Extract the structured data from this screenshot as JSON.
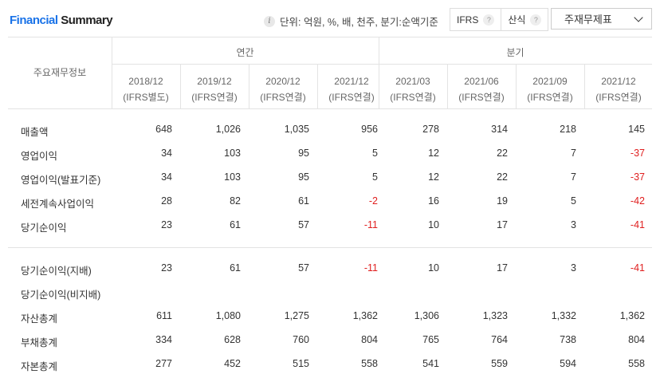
{
  "header": {
    "title_part1": "Financial",
    "title_part2": " Summary",
    "info_glyph": "i",
    "unit_text": "단위: 억원, %, 배, 천주, 분기:순액기준",
    "toggle_ifrs": "IFRS",
    "toggle_calc": "산식",
    "help_glyph": "?",
    "dropdown_value": "주재무제표"
  },
  "table": {
    "label_header": "주요재무정보",
    "group_annual": "연간",
    "group_quarter": "분기",
    "columns": [
      {
        "period": "2018/12",
        "basis": "(IFRS별도)"
      },
      {
        "period": "2019/12",
        "basis": "(IFRS연결)"
      },
      {
        "period": "2020/12",
        "basis": "(IFRS연결)"
      },
      {
        "period": "2021/12",
        "basis": "(IFRS연결)"
      },
      {
        "period": "2021/03",
        "basis": "(IFRS연결)"
      },
      {
        "period": "2021/06",
        "basis": "(IFRS연결)"
      },
      {
        "period": "2021/09",
        "basis": "(IFRS연결)"
      },
      {
        "period": "2021/12",
        "basis": "(IFRS연결)"
      }
    ],
    "rows": [
      {
        "label": "매출액",
        "values": [
          "648",
          "1,026",
          "1,035",
          "956",
          "278",
          "314",
          "218",
          "145"
        ]
      },
      {
        "label": "영업이익",
        "values": [
          "34",
          "103",
          "95",
          "5",
          "12",
          "22",
          "7",
          "-37"
        ]
      },
      {
        "label": "영업이익(발표기준)",
        "values": [
          "34",
          "103",
          "95",
          "5",
          "12",
          "22",
          "7",
          "-37"
        ]
      },
      {
        "label": "세전계속사업이익",
        "values": [
          "28",
          "82",
          "61",
          "-2",
          "16",
          "19",
          "5",
          "-42"
        ]
      },
      {
        "label": "당기순이익",
        "values": [
          "23",
          "61",
          "57",
          "-11",
          "10",
          "17",
          "3",
          "-41"
        ]
      },
      {
        "label": "당기순이익(지배)",
        "values": [
          "23",
          "61",
          "57",
          "-11",
          "10",
          "17",
          "3",
          "-41"
        ]
      },
      {
        "label": "당기순이익(비지배)",
        "values": [
          "",
          "",
          "",
          "",
          "",
          "",
          "",
          ""
        ]
      },
      {
        "label": "자산총계",
        "values": [
          "611",
          "1,080",
          "1,275",
          "1,362",
          "1,306",
          "1,323",
          "1,332",
          "1,362"
        ]
      },
      {
        "label": "부채총계",
        "values": [
          "334",
          "628",
          "760",
          "804",
          "765",
          "764",
          "738",
          "804"
        ]
      },
      {
        "label": "자본총계",
        "values": [
          "277",
          "452",
          "515",
          "558",
          "541",
          "559",
          "594",
          "558"
        ]
      }
    ]
  }
}
